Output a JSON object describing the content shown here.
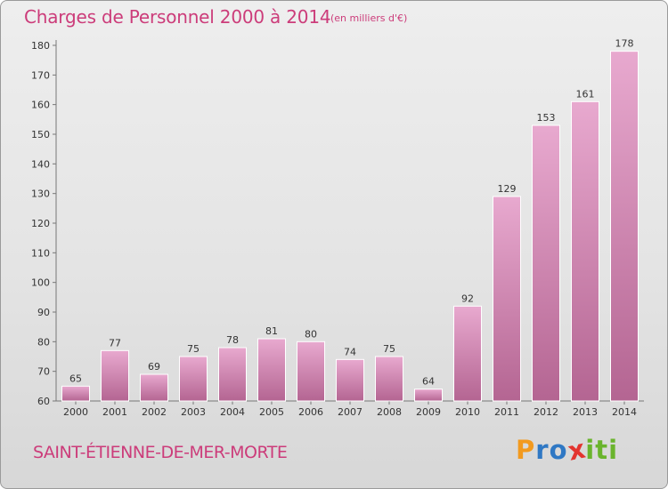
{
  "header": {
    "title": "Charges de Personnel 2000 à 2014",
    "subtitle": "(en milliers d'€)"
  },
  "footer": {
    "commune": "SAINT-ÉTIENNE-DE-MER-MORTE",
    "logo": {
      "letters": [
        "P",
        "r",
        "o",
        "x",
        "i",
        "t",
        "i"
      ],
      "colors": [
        "#f29a1f",
        "#2f78c4",
        "#2f78c4",
        "#e3342f",
        "#6ab42d",
        "#6ab42d",
        "#6ab42d"
      ]
    }
  },
  "colors": {
    "accent": "#cc3c7a",
    "bar_light": "#e8a9cf",
    "bar_dark": "#b46592"
  },
  "chart_data": {
    "type": "bar",
    "categories": [
      "2000",
      "2001",
      "2002",
      "2003",
      "2004",
      "2005",
      "2006",
      "2007",
      "2008",
      "2009",
      "2010",
      "2011",
      "2012",
      "2013",
      "2014"
    ],
    "values": [
      65,
      77,
      69,
      75,
      78,
      81,
      80,
      74,
      75,
      64,
      92,
      129,
      153,
      161,
      178
    ],
    "ylim": [
      60,
      180
    ],
    "yticks": [
      60,
      70,
      80,
      90,
      100,
      110,
      120,
      130,
      140,
      150,
      160,
      170,
      180
    ],
    "grid": false,
    "legend": "none"
  }
}
